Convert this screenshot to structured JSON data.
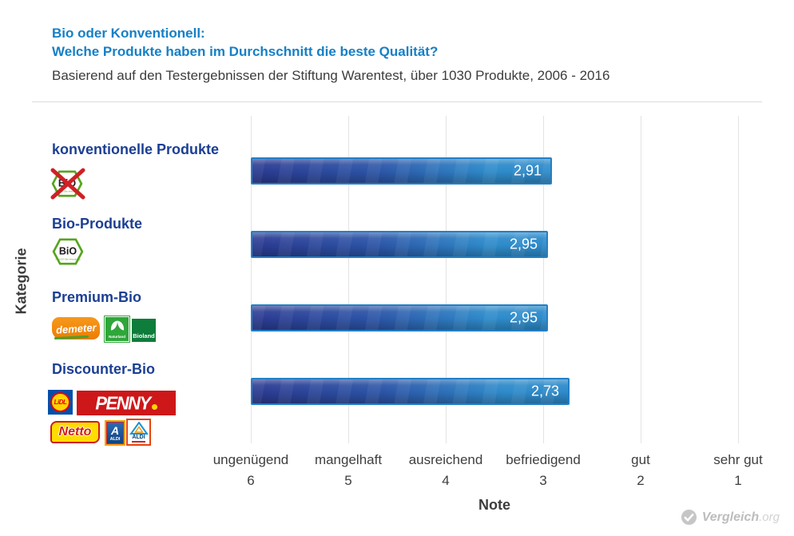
{
  "header": {
    "title_line1": "Bio oder Konventionell:",
    "title_line2": "Welche Produkte haben im Durchschnitt die beste Qualität?",
    "subtitle": "Basierend auf den Testergebnissen der Stiftung Warentest, über 1030 Produkte, 2006 - 2016"
  },
  "chart_data": {
    "type": "bar",
    "orientation": "horizontal",
    "title": "Bio oder Konventionell: Welche Produkte haben im Durchschnitt die beste Qualität?",
    "categories": [
      "konventionelle Produkte",
      "Bio-Produkte",
      "Premium-Bio",
      "Discounter-Bio"
    ],
    "values": [
      2.91,
      2.95,
      2.95,
      2.73
    ],
    "value_labels": [
      "2,91",
      "2,95",
      "2,95",
      "2,73"
    ],
    "x_range": [
      6,
      1
    ],
    "x_axis_reversed": true,
    "x_ticks": [
      {
        "label": "ungenügend",
        "grade": "6"
      },
      {
        "label": "mangelhaft",
        "grade": "5"
      },
      {
        "label": "ausreichend",
        "grade": "4"
      },
      {
        "label": "befriedigend",
        "grade": "3"
      },
      {
        "label": "gut",
        "grade": "2"
      },
      {
        "label": "sehr gut",
        "grade": "1"
      }
    ],
    "xlabel": "Note",
    "ylabel": "Kategorie",
    "grid": true,
    "legend": false,
    "colors": {
      "title_blue": "#1580c6",
      "category_navy": "#1c3f94",
      "bar_gradient_left": "#2b3a91",
      "bar_gradient_mid": "#2c55a7",
      "bar_gradient_right": "#2e8bca",
      "bar_border": "#2280c6",
      "gridline": "#e3e3e3",
      "text_gray": "#3c3c3c"
    }
  },
  "logos": {
    "bio_seal_crossed": {
      "text": "BiO",
      "subtext": "nach EG-Öko-Verordnung"
    },
    "bio_seal": {
      "text": "BiO",
      "subtext": "nach EG-Öko-Verordnung"
    },
    "demeter": {
      "text": "demeter"
    },
    "naturland": {
      "text": "Naturland"
    },
    "bioland": {
      "text": "Bioland"
    },
    "lidl": {
      "text": "LiDL"
    },
    "penny": {
      "text": "PENNY"
    },
    "netto": {
      "text": "Netto"
    },
    "aldi_nord": {
      "letter": "A",
      "text": "ALDI"
    },
    "aldi_sued": {
      "text": "ALDI"
    }
  },
  "watermark": {
    "brand": "Vergleich",
    "suffix": ".org"
  }
}
